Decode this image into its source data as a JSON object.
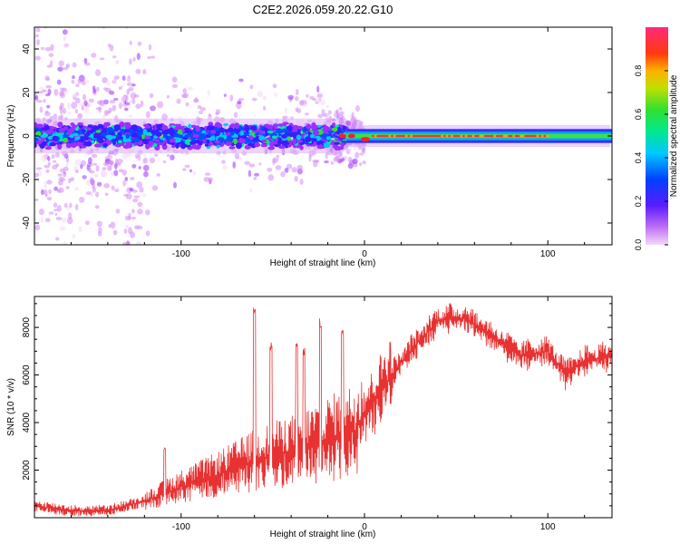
{
  "title": "C2E2.2026.059.20.22.G10",
  "colors": {
    "snr_line": "#e83232",
    "axis": "#000000",
    "background": "#ffffff"
  },
  "colormap": [
    "#f4d8f8",
    "#d58cf5",
    "#9b30ff",
    "#3a1cff",
    "#0050ff",
    "#00c8ff",
    "#00e6a0",
    "#30e030",
    "#b0e000",
    "#ffd000",
    "#ff7000",
    "#ff2020",
    "#ff2a7a"
  ],
  "chart_data": [
    {
      "type": "heatmap",
      "name": "spectrogram",
      "xlabel": "Height of straight line (km)",
      "ylabel": "Frequency (Hz)",
      "xlim": [
        -180,
        135
      ],
      "ylim": [
        -50,
        50
      ],
      "xticks": [
        -100,
        0,
        100
      ],
      "yticks": [
        -40,
        -20,
        0,
        20,
        40
      ],
      "colorbar": {
        "label": "Normalized spectral amplitude",
        "range": [
          0.0,
          1.0
        ],
        "ticks": [
          "0.0",
          "0.2",
          "0.4",
          "0.6",
          "0.8"
        ]
      },
      "description_of_intensity": {
        "main_band_center_hz": 0,
        "band_halfwidth_hz_noisy_region": 6,
        "band_halfwidth_hz_clean_region": 2,
        "transition_height_km": -10,
        "peak_amplitude": 0.95
      }
    },
    {
      "type": "line",
      "name": "snr",
      "xlabel": "Height of straight line (km)",
      "ylabel": "SNR (10 * v/v)",
      "xlim": [
        -180,
        135
      ],
      "ylim": [
        0,
        9300
      ],
      "xticks": [
        -100,
        0,
        100
      ],
      "yticks": [
        2000,
        4000,
        6000,
        8000
      ],
      "envelope_points": [
        {
          "x": -180,
          "y": 500
        },
        {
          "x": -160,
          "y": 300
        },
        {
          "x": -140,
          "y": 300
        },
        {
          "x": -120,
          "y": 700
        },
        {
          "x": -100,
          "y": 1300
        },
        {
          "x": -80,
          "y": 1800
        },
        {
          "x": -60,
          "y": 2400
        },
        {
          "x": -40,
          "y": 2800
        },
        {
          "x": -20,
          "y": 3300
        },
        {
          "x": -5,
          "y": 3700
        },
        {
          "x": 10,
          "y": 5500
        },
        {
          "x": 25,
          "y": 7000
        },
        {
          "x": 40,
          "y": 8300
        },
        {
          "x": 55,
          "y": 8400
        },
        {
          "x": 70,
          "y": 7600
        },
        {
          "x": 85,
          "y": 6800
        },
        {
          "x": 100,
          "y": 7000
        },
        {
          "x": 110,
          "y": 6000
        },
        {
          "x": 120,
          "y": 6600
        },
        {
          "x": 135,
          "y": 6800
        }
      ],
      "spikes": [
        {
          "x": -109,
          "y": 3000
        },
        {
          "x": -60,
          "y": 8900
        },
        {
          "x": -51,
          "y": 7400
        },
        {
          "x": -37,
          "y": 7600
        },
        {
          "x": -33,
          "y": 7200
        },
        {
          "x": -24,
          "y": 8400
        },
        {
          "x": -12,
          "y": 7900
        }
      ]
    }
  ]
}
